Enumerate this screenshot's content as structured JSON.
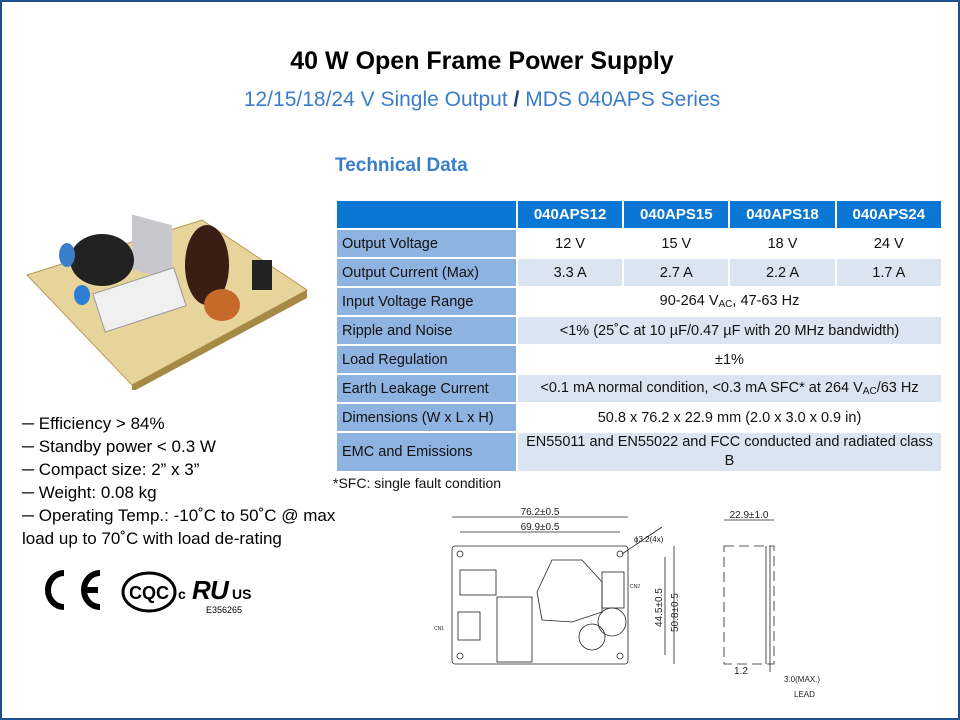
{
  "title": "40 W Open Frame Power Supply",
  "subtitle": {
    "left": "12/15/18/24 V Single Output",
    "sep": "/",
    "right": "MDS 040APS Series"
  },
  "section_title": "Technical Data",
  "table": {
    "headers": [
      "",
      "040APS12",
      "040APS15",
      "040APS18",
      "040APS24"
    ],
    "rows": [
      {
        "label": "Output  Voltage",
        "values": [
          "12 V",
          "15 V",
          "18 V",
          "24 V"
        ]
      },
      {
        "label": "Output  Current  (Max)",
        "values": [
          "3.3 A",
          "2.7 A",
          "2.2 A",
          "1.7 A"
        ]
      },
      {
        "label": "Input  Voltage Range",
        "pre": "90-264 V",
        "sub": "AC",
        "post": ", 47-63 Hz"
      },
      {
        "label": "Ripple and Noise",
        "value": "<1% (25˚C at 10 µF/0.47 µF with 20 MHz bandwidth)"
      },
      {
        "label": "Load Regulation",
        "value": "±1%"
      },
      {
        "label": "Earth Leakage Current",
        "pre": "<0.1 mA normal condition, <0.3 mA SFC* at 264 V",
        "sub": "AC",
        "post": "/63 Hz"
      },
      {
        "label": "Dimensions (W x L x H)",
        "value": "50.8 x 76.2 x 22.9 mm (2.0 x 3.0 x 0.9 in)"
      },
      {
        "label": "EMC and Emissions",
        "value": "EN55011 and EN55022 and FCC conducted and radiated class B"
      }
    ]
  },
  "footnote": "*SFC: single fault condition",
  "bullets": [
    "─ Efficiency > 84%",
    "─ Standby power < 0.3 W",
    "─ Compact size: 2” x 3”",
    "─ Weight: 0.08 kg",
    "─ Operating Temp.: -10˚C to 50˚C @ max load up to 70˚C with load de-rating"
  ],
  "logos": {
    "ce": "CE",
    "cqc": "CQC",
    "ul_c": "c",
    "ul_us": "US",
    "ul_number": "E356265"
  },
  "drawing": {
    "width_outer": "76.2±0.5",
    "width_inner": "69.9±0.5",
    "hole": "ϕ3.2(4x)",
    "height_inner": "44.5±0.5",
    "height_outer": "50.8±0.5",
    "cn1": "CN1",
    "cn2": "CN2",
    "depth": "22.9±1.0",
    "pcb": "1.2",
    "lead_len": "3.0(MAX.)",
    "lead": "LEAD"
  },
  "colors": {
    "header": "#0a77d5",
    "label_col": "#8fb3e1",
    "alt_row": "#dbe5f1",
    "accent_text": "#3a7dc9",
    "border": "#1f4e8c"
  }
}
